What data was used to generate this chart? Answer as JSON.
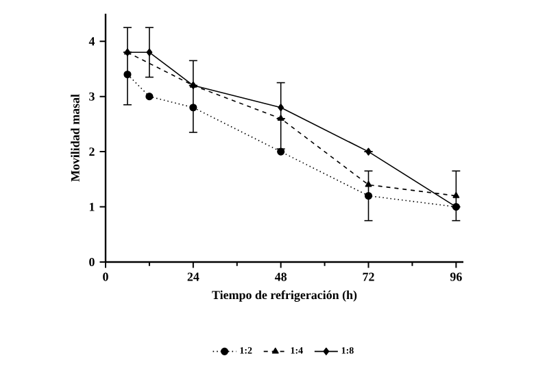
{
  "chart_data": {
    "type": "line",
    "xlabel": "Tiempo de refrigeración (h)",
    "ylabel": "Movilidad masal",
    "xlim": [
      0,
      98
    ],
    "xticks": [
      0,
      24,
      48,
      72,
      96
    ],
    "ylim": [
      0,
      4.5
    ],
    "yticks": [
      0,
      1,
      2,
      3,
      4
    ],
    "legend": "bottom",
    "grid": false,
    "series": [
      {
        "name": "1:2",
        "color": "#000000",
        "marker": "circle",
        "line_style": "dotted",
        "x": [
          6,
          12,
          24,
          48,
          72,
          96
        ],
        "values": [
          3.4,
          3.0,
          2.8,
          2.0,
          1.2,
          1.0
        ]
      },
      {
        "name": "1:4",
        "color": "#000000",
        "marker": "triangle",
        "line_style": "dashed",
        "x": [
          6,
          24,
          48,
          72,
          96
        ],
        "values": [
          3.8,
          3.2,
          2.6,
          1.4,
          1.2
        ],
        "errors": [
          null,
          null,
          null,
          [
            0.75,
            1.65
          ],
          [
            0.75,
            1.65
          ]
        ]
      },
      {
        "name": "1:8",
        "color": "#000000",
        "marker": "diamond",
        "line_style": "solid",
        "x": [
          6,
          12,
          24,
          48,
          72,
          96
        ],
        "values": [
          3.8,
          3.8,
          3.2,
          2.8,
          2.0,
          1.0
        ],
        "errors": [
          [
            2.85,
            4.25
          ],
          [
            3.35,
            4.25
          ],
          [
            2.35,
            3.65
          ],
          [
            2.05,
            3.25
          ],
          null,
          null
        ]
      }
    ]
  }
}
